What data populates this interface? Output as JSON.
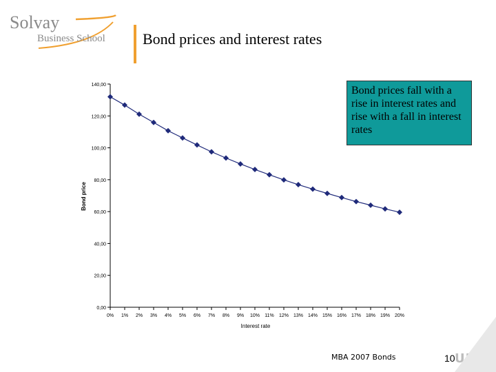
{
  "brand": {
    "logo_main": "Solvay",
    "logo_sub": "Business School",
    "accent": "#f0a030"
  },
  "slide": {
    "title": "Bond prices and interest rates",
    "callout": "Bond prices fall with a rise in interest rates and rise with a fall in interest rates",
    "footer": "MBA 2007 Bonds",
    "page_number": "10",
    "ulb_logo": "ULB"
  },
  "chart_data": {
    "type": "line",
    "xlabel": "Interest rate",
    "ylabel": "Bond price",
    "categories": [
      "0%",
      "1%",
      "2%",
      "3%",
      "4%",
      "5%",
      "6%",
      "7%",
      "8%",
      "9%",
      "10%",
      "11%",
      "12%",
      "13%",
      "14%",
      "15%",
      "16%",
      "17%",
      "18%",
      "19%",
      "20%"
    ],
    "ylim": [
      0,
      140
    ],
    "yticks": [
      "0,00",
      "20,00",
      "40,00",
      "60,00",
      "80,00",
      "100,00",
      "120,00",
      "140,00"
    ],
    "series": [
      {
        "values": [
          132,
          126.8,
          121.1,
          115.9,
          110.7,
          106.2,
          101.8,
          97.5,
          93.6,
          89.9,
          86.4,
          83.1,
          79.9,
          76.9,
          74.1,
          71.4,
          68.8,
          66.3,
          64.0,
          61.7,
          59.6
        ],
        "color": "#1f2a7a",
        "marker": "diamond"
      }
    ],
    "grid": false
  }
}
